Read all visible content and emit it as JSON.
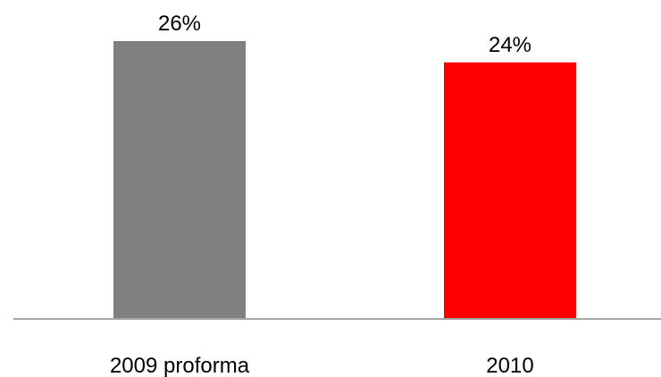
{
  "chart_data": {
    "type": "bar",
    "categories": [
      "2009 proforma",
      "2010"
    ],
    "values": [
      26,
      24
    ],
    "value_labels": [
      "26%",
      "24%"
    ],
    "colors": [
      "#808080",
      "#ff0000"
    ],
    "axis_color": "#a6a6a6",
    "title": "",
    "xlabel": "",
    "ylabel": "",
    "ylim": [
      0,
      26
    ],
    "grid": false,
    "legend": "none"
  }
}
